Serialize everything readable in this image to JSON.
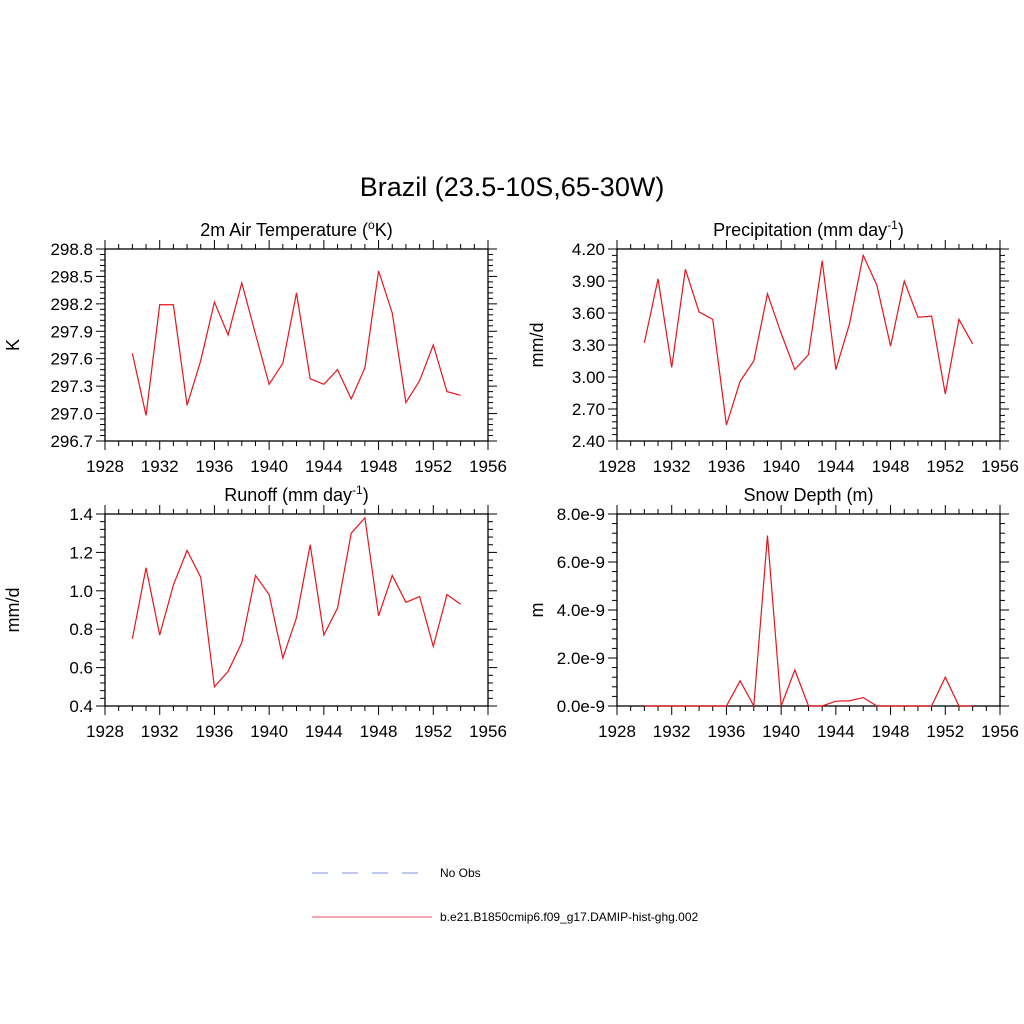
{
  "figure": {
    "title": "Brazil (23.5-10S,65-30W)"
  },
  "colors": {
    "model_line": "#e8141c",
    "obs_line": "#9aa8e8",
    "axes": "#000000"
  },
  "legend": [
    {
      "label": "No Obs",
      "style": "dashed",
      "color": "#9aa8e8"
    },
    {
      "label": "b.e21.B1850cmip6.f09_g17.DAMIP-hist-ghg.002",
      "style": "solid",
      "color": "#f07080"
    }
  ],
  "chart_data": [
    {
      "type": "line",
      "id": "temperature",
      "title_main": "2m Air Temperature (",
      "title_sup": "o",
      "title_end": "K)",
      "ylabel": "K",
      "xlim": [
        1928,
        1956
      ],
      "xticks": [
        1928,
        1932,
        1936,
        1940,
        1944,
        1948,
        1952,
        1956
      ],
      "ylim": [
        296.7,
        298.8
      ],
      "yticks": [
        296.7,
        297.0,
        297.3,
        297.6,
        297.9,
        298.2,
        298.5,
        298.8
      ],
      "ytick_labels": [
        "296.7",
        "297.0",
        "297.3",
        "297.6",
        "297.9",
        "298.2",
        "298.5",
        "298.8"
      ],
      "x": [
        1930,
        1931,
        1932,
        1933,
        1934,
        1935,
        1936,
        1937,
        1938,
        1939,
        1940,
        1941,
        1942,
        1943,
        1944,
        1945,
        1946,
        1947,
        1948,
        1949,
        1950,
        1951,
        1952,
        1953,
        1954
      ],
      "series": [
        {
          "values": [
            297.66,
            296.98,
            298.19,
            298.19,
            297.09,
            297.58,
            298.22,
            297.86,
            298.43,
            297.87,
            297.32,
            297.55,
            298.32,
            297.38,
            297.32,
            297.48,
            297.16,
            297.5,
            298.56,
            298.1,
            297.12,
            297.36,
            297.75,
            297.24,
            297.2
          ]
        }
      ]
    },
    {
      "type": "line",
      "id": "precipitation",
      "title_main": "Precipitation (mm day",
      "title_sup": "-1",
      "title_end": ")",
      "ylabel": "mm/d",
      "xlim": [
        1928,
        1956
      ],
      "xticks": [
        1928,
        1932,
        1936,
        1940,
        1944,
        1948,
        1952,
        1956
      ],
      "ylim": [
        2.4,
        4.2
      ],
      "yticks": [
        2.4,
        2.7,
        3.0,
        3.3,
        3.6,
        3.9,
        4.2
      ],
      "ytick_labels": [
        "2.40",
        "2.70",
        "3.00",
        "3.30",
        "3.60",
        "3.90",
        "4.20"
      ],
      "x": [
        1930,
        1931,
        1932,
        1933,
        1934,
        1935,
        1936,
        1937,
        1938,
        1939,
        1940,
        1941,
        1942,
        1943,
        1944,
        1945,
        1946,
        1947,
        1948,
        1949,
        1950,
        1951,
        1952,
        1953,
        1954
      ],
      "series": [
        {
          "values": [
            3.32,
            3.92,
            3.09,
            4.01,
            3.61,
            3.54,
            2.55,
            2.96,
            3.15,
            3.78,
            3.41,
            3.07,
            3.21,
            4.09,
            3.07,
            3.5,
            4.14,
            3.86,
            3.29,
            3.9,
            3.56,
            3.57,
            2.84,
            3.54,
            3.31
          ]
        }
      ]
    },
    {
      "type": "line",
      "id": "runoff",
      "title_main": "Runoff (mm day",
      "title_sup": "-1",
      "title_end": ")",
      "ylabel": "mm/d",
      "xlim": [
        1928,
        1956
      ],
      "xticks": [
        1928,
        1932,
        1936,
        1940,
        1944,
        1948,
        1952,
        1956
      ],
      "ylim": [
        0.4,
        1.4
      ],
      "yticks": [
        0.4,
        0.6,
        0.8,
        1.0,
        1.2,
        1.4
      ],
      "ytick_labels": [
        "0.4",
        "0.6",
        "0.8",
        "1.0",
        "1.2",
        "1.4"
      ],
      "x": [
        1930,
        1931,
        1932,
        1933,
        1934,
        1935,
        1936,
        1937,
        1938,
        1939,
        1940,
        1941,
        1942,
        1943,
        1944,
        1945,
        1946,
        1947,
        1948,
        1949,
        1950,
        1951,
        1952,
        1953,
        1954
      ],
      "series": [
        {
          "values": [
            0.75,
            1.12,
            0.77,
            1.03,
            1.21,
            1.07,
            0.5,
            0.58,
            0.73,
            1.08,
            0.98,
            0.65,
            0.86,
            1.24,
            0.77,
            0.91,
            1.3,
            1.38,
            0.87,
            1.08,
            0.94,
            0.97,
            0.71,
            0.98,
            0.93
          ]
        }
      ]
    },
    {
      "type": "line",
      "id": "snowdepth",
      "title_main": "Snow Depth (m)",
      "title_sup": "",
      "title_end": "",
      "ylabel": "m",
      "xlim": [
        1928,
        1956
      ],
      "xticks": [
        1928,
        1932,
        1936,
        1940,
        1944,
        1948,
        1952,
        1956
      ],
      "ylim": [
        0,
        8e-09
      ],
      "yticks": [
        0,
        2e-09,
        4e-09,
        6e-09,
        8e-09
      ],
      "ytick_labels": [
        "0.0e-9",
        "2.0e-9",
        "4.0e-9",
        "6.0e-9",
        "8.0e-9"
      ],
      "x": [
        1930,
        1931,
        1932,
        1933,
        1934,
        1935,
        1936,
        1937,
        1938,
        1939,
        1940,
        1941,
        1942,
        1943,
        1944,
        1945,
        1946,
        1947,
        1948,
        1949,
        1950,
        1951,
        1952,
        1953,
        1954
      ],
      "series": [
        {
          "values": [
            0,
            0,
            0,
            0,
            0,
            0,
            0,
            1.05e-09,
            0,
            7.1e-09,
            0,
            1.5e-09,
            0,
            0,
            2e-10,
            2.2e-10,
            3.5e-10,
            0,
            0,
            0,
            0,
            0,
            1.2e-09,
            0,
            0
          ]
        }
      ]
    }
  ]
}
